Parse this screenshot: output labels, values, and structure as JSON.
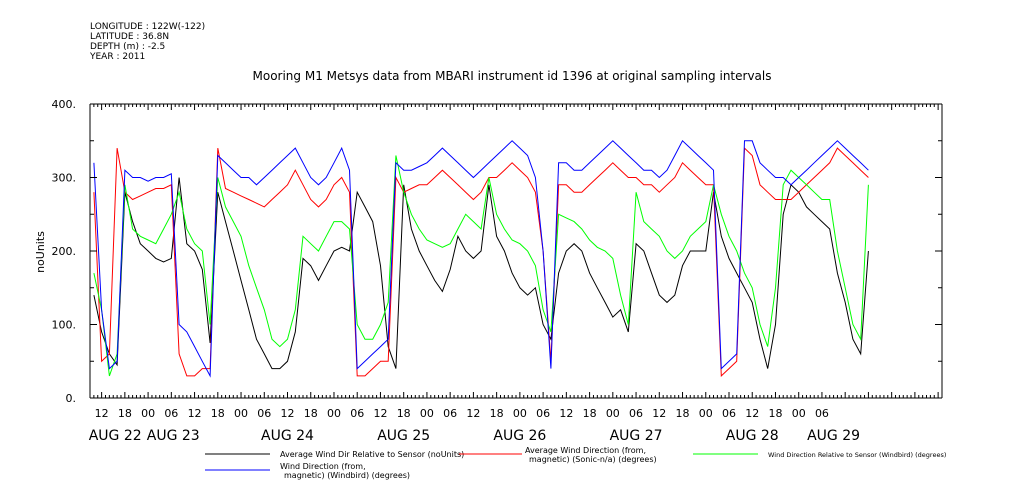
{
  "meta": {
    "longitude": "LONGITUDE : 122W(-122)",
    "latitude": "LATITUDE : 36.8N",
    "depth": "DEPTH (m) : -2.5",
    "year": "YEAR : 2011"
  },
  "chart_data": {
    "type": "line",
    "title": "Mooring M1 Metsys data from MBARI instrument id 1396 at original sampling intervals",
    "ylabel": "noUnits",
    "xlabel": "",
    "ylim": [
      0,
      400
    ],
    "y_ticks": [
      0,
      100,
      200,
      300,
      400
    ],
    "x_unit": "hour since AUG 22 00:00",
    "xlim": [
      9,
      229
    ],
    "hour_tick_labels": [
      "12",
      "18",
      "00",
      "06",
      "12",
      "18",
      "00",
      "06",
      "12",
      "18",
      "00",
      "06",
      "12",
      "18",
      "00",
      "06",
      "12",
      "18",
      "00",
      "06",
      "12",
      "18",
      "00",
      "06",
      "12",
      "18",
      "00",
      "06",
      "12",
      "18",
      "00",
      "06"
    ],
    "hour_tick_positions": [
      12,
      18,
      24,
      30,
      36,
      42,
      48,
      54,
      60,
      66,
      72,
      78,
      84,
      90,
      96,
      102,
      108,
      114,
      120,
      126,
      132,
      138,
      144,
      150,
      156,
      162,
      168,
      174,
      180,
      186,
      192,
      198
    ],
    "day_labels": [
      "AUG 22",
      "AUG 23",
      "AUG 24",
      "AUG 25",
      "AUG 26",
      "AUG 27",
      "AUG 28",
      "AUG 29"
    ],
    "day_label_positions": [
      15.5,
      30.5,
      60,
      90,
      120,
      150,
      180,
      201
    ],
    "grid": false,
    "legend_placement": "bottom",
    "series": [
      {
        "name": "Average Wind Dir Relative to Sensor (noUnits)",
        "color": "#000000",
        "x": [
          10,
          12,
          14,
          16,
          18,
          20,
          22,
          24,
          26,
          28,
          30,
          32,
          34,
          36,
          38,
          40,
          42,
          44,
          46,
          48,
          50,
          52,
          54,
          56,
          58,
          60,
          62,
          64,
          66,
          68,
          70,
          72,
          74,
          76,
          78,
          80,
          82,
          84,
          86,
          88,
          90,
          92,
          94,
          96,
          98,
          100,
          102,
          104,
          106,
          108,
          110,
          112,
          114,
          116,
          118,
          120,
          122,
          124,
          126,
          128,
          130,
          132,
          134,
          136,
          138,
          140,
          142,
          144,
          146,
          148,
          150,
          152,
          154,
          156,
          158,
          160,
          162,
          164,
          166,
          168,
          170,
          172,
          174,
          176,
          178,
          180,
          182,
          184,
          186,
          188,
          190,
          192,
          194,
          196,
          198,
          200,
          202,
          204,
          206,
          208,
          210
        ],
        "y": [
          140,
          90,
          60,
          45,
          280,
          240,
          210,
          200,
          190,
          185,
          190,
          300,
          210,
          200,
          175,
          75,
          280,
          240,
          200,
          160,
          120,
          80,
          60,
          40,
          40,
          50,
          90,
          190,
          180,
          160,
          180,
          200,
          205,
          200,
          280,
          260,
          240,
          180,
          70,
          40,
          290,
          230,
          200,
          180,
          160,
          145,
          175,
          220,
          200,
          190,
          200,
          290,
          220,
          200,
          170,
          150,
          140,
          150,
          100,
          80,
          170,
          200,
          210,
          200,
          170,
          150,
          130,
          110,
          120,
          90,
          210,
          200,
          170,
          140,
          130,
          140,
          180,
          200,
          200,
          200,
          280,
          220,
          190,
          170,
          150,
          130,
          80,
          40,
          100,
          250,
          290,
          280,
          260,
          250,
          240,
          230,
          170,
          130,
          80,
          60,
          200
        ]
      },
      {
        "name": "Average Wind Direction (from, magnetic) (Sonic-n/a) (degrees)",
        "color": "#ff0000",
        "x": [
          10,
          12,
          14,
          16,
          18,
          20,
          22,
          24,
          26,
          28,
          30,
          32,
          34,
          36,
          38,
          40,
          42,
          44,
          46,
          48,
          50,
          52,
          54,
          56,
          58,
          60,
          62,
          64,
          66,
          68,
          70,
          72,
          74,
          76,
          78,
          80,
          82,
          84,
          86,
          88,
          90,
          92,
          94,
          96,
          98,
          100,
          102,
          104,
          106,
          108,
          110,
          112,
          114,
          116,
          118,
          120,
          122,
          124,
          126,
          128,
          130,
          132,
          134,
          136,
          138,
          140,
          142,
          144,
          146,
          148,
          150,
          152,
          154,
          156,
          158,
          160,
          162,
          164,
          166,
          168,
          170,
          172,
          174,
          176,
          178,
          180,
          182,
          184,
          186,
          188,
          190,
          192,
          194,
          196,
          198,
          200,
          202,
          204,
          206,
          208,
          210
        ],
        "y": [
          280,
          50,
          60,
          340,
          280,
          270,
          275,
          280,
          285,
          285,
          290,
          60,
          30,
          30,
          40,
          40,
          340,
          285,
          280,
          275,
          270,
          265,
          260,
          270,
          280,
          290,
          310,
          290,
          270,
          260,
          270,
          290,
          300,
          280,
          30,
          30,
          40,
          50,
          50,
          300,
          280,
          285,
          290,
          290,
          300,
          310,
          300,
          290,
          280,
          270,
          280,
          300,
          300,
          310,
          320,
          310,
          300,
          280,
          200,
          50,
          290,
          290,
          280,
          280,
          290,
          300,
          310,
          320,
          310,
          300,
          300,
          290,
          290,
          280,
          290,
          300,
          320,
          310,
          300,
          290,
          290,
          30,
          40,
          50,
          340,
          330,
          290,
          280,
          270,
          270,
          270,
          280,
          290,
          300,
          310,
          320,
          340,
          330,
          320,
          310,
          300
        ]
      },
      {
        "name": "Wind Direction Relative to Sensor (Windbird) (degrees)",
        "color": "#00ff00",
        "x": [
          10,
          12,
          14,
          16,
          18,
          20,
          22,
          24,
          26,
          28,
          30,
          32,
          34,
          36,
          38,
          40,
          42,
          44,
          46,
          48,
          50,
          52,
          54,
          56,
          58,
          60,
          62,
          64,
          66,
          68,
          70,
          72,
          74,
          76,
          78,
          80,
          82,
          84,
          86,
          88,
          90,
          92,
          94,
          96,
          98,
          100,
          102,
          104,
          106,
          108,
          110,
          112,
          114,
          116,
          118,
          120,
          122,
          124,
          126,
          128,
          130,
          132,
          134,
          136,
          138,
          140,
          142,
          144,
          146,
          148,
          150,
          152,
          154,
          156,
          158,
          160,
          162,
          164,
          166,
          168,
          170,
          172,
          174,
          176,
          178,
          180,
          182,
          184,
          186,
          188,
          190,
          192,
          194,
          196,
          198,
          200,
          202,
          204,
          206,
          208,
          210
        ],
        "y": [
          170,
          120,
          30,
          60,
          290,
          230,
          220,
          215,
          210,
          230,
          250,
          280,
          230,
          210,
          200,
          100,
          300,
          260,
          240,
          220,
          180,
          150,
          120,
          80,
          70,
          80,
          120,
          220,
          210,
          200,
          220,
          240,
          240,
          230,
          100,
          80,
          80,
          100,
          130,
          330,
          280,
          250,
          230,
          215,
          210,
          205,
          210,
          230,
          250,
          240,
          230,
          300,
          250,
          230,
          215,
          210,
          200,
          180,
          120,
          90,
          250,
          245,
          240,
          230,
          215,
          205,
          200,
          190,
          140,
          100,
          280,
          240,
          230,
          220,
          200,
          190,
          200,
          220,
          230,
          240,
          290,
          250,
          220,
          200,
          170,
          150,
          100,
          70,
          150,
          290,
          310,
          300,
          290,
          280,
          270,
          270,
          200,
          150,
          100,
          80,
          290
        ]
      },
      {
        "name": "Wind Direction (from, magnetic) (Windbird) (degrees)",
        "color": "#0000ff",
        "x": [
          10,
          12,
          14,
          16,
          18,
          20,
          22,
          24,
          26,
          28,
          30,
          32,
          34,
          36,
          38,
          40,
          42,
          44,
          46,
          48,
          50,
          52,
          54,
          56,
          58,
          60,
          62,
          64,
          66,
          68,
          70,
          72,
          74,
          76,
          78,
          80,
          82,
          84,
          86,
          88,
          90,
          92,
          94,
          96,
          98,
          100,
          102,
          104,
          106,
          108,
          110,
          112,
          114,
          116,
          118,
          120,
          122,
          124,
          126,
          128,
          130,
          132,
          134,
          136,
          138,
          140,
          142,
          144,
          146,
          148,
          150,
          152,
          154,
          156,
          158,
          160,
          162,
          164,
          166,
          168,
          170,
          172,
          174,
          176,
          178,
          180,
          182,
          184,
          186,
          188,
          190,
          192,
          194,
          196,
          198,
          200,
          202,
          204,
          206,
          208,
          210
        ],
        "y": [
          320,
          120,
          40,
          50,
          310,
          300,
          300,
          295,
          300,
          300,
          305,
          100,
          90,
          70,
          50,
          30,
          330,
          320,
          310,
          300,
          300,
          290,
          300,
          310,
          320,
          330,
          340,
          320,
          300,
          290,
          300,
          320,
          340,
          310,
          40,
          50,
          60,
          70,
          80,
          320,
          310,
          310,
          315,
          320,
          330,
          340,
          330,
          320,
          310,
          300,
          310,
          320,
          330,
          340,
          350,
          340,
          330,
          300,
          200,
          40,
          320,
          320,
          310,
          310,
          320,
          330,
          340,
          350,
          340,
          330,
          320,
          310,
          310,
          300,
          310,
          330,
          350,
          340,
          330,
          320,
          310,
          40,
          50,
          60,
          350,
          350,
          320,
          310,
          300,
          300,
          290,
          300,
          310,
          320,
          330,
          340,
          350,
          340,
          330,
          320,
          310
        ]
      }
    ]
  }
}
